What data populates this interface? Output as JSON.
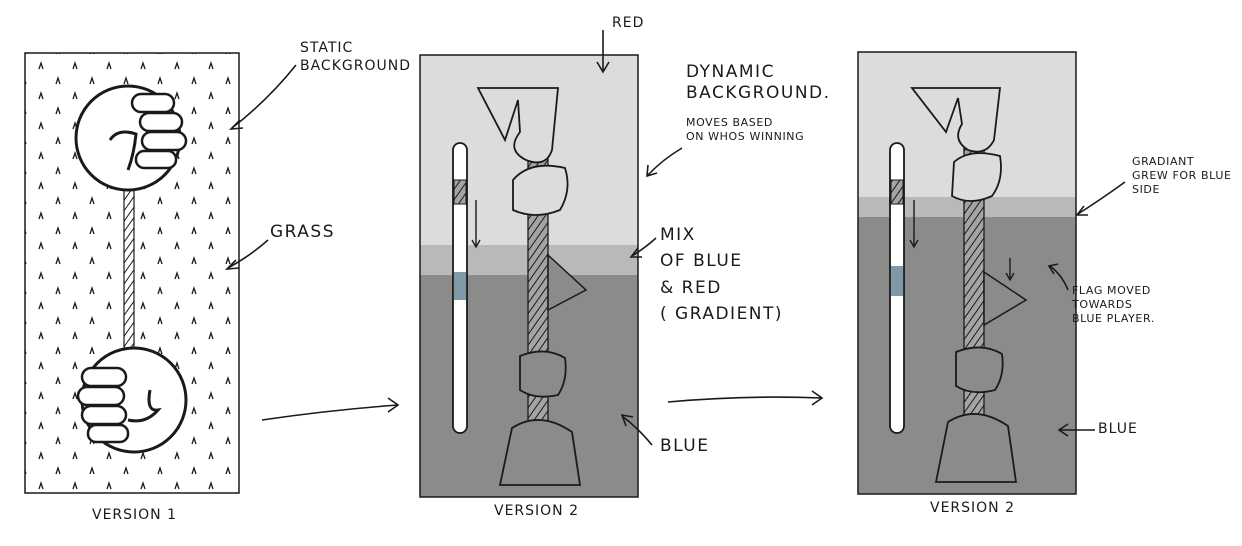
{
  "panels": [
    {
      "caption": "VERSION 1"
    },
    {
      "caption": "VERSION 2"
    },
    {
      "caption": "VERSION 2"
    }
  ],
  "annotations": {
    "static_background": [
      "STATIC",
      "BACKGROUND"
    ],
    "grass": "GRASS",
    "red": "RED",
    "dynamic_background": [
      "DYNAMIC",
      "BACKGROUND."
    ],
    "moves_based": [
      "MOVES BASED",
      "ON WHOS WINNING"
    ],
    "mix": [
      "MIX",
      "OF BLUE",
      "& RED",
      "( GRADIENT)"
    ],
    "blue": "BLUE",
    "gradiant": [
      "GRADIANT",
      "GREW FOR BLUE",
      "SIDE"
    ],
    "flag_moved": [
      "FLAG MOVED",
      "TOWARDS",
      "BLUE PLAYER."
    ],
    "blue_right": "BLUE"
  },
  "colors": {
    "red_zone": "#dcdcdc",
    "mix_zone": "#b9b9b9",
    "blue_zone": "#8b8b8b",
    "stroke": "#1a1a1a",
    "marker_fill": "#7f9aa6"
  }
}
